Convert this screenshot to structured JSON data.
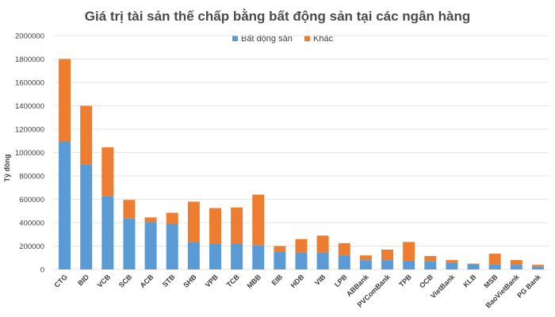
{
  "chart_data": {
    "type": "bar",
    "stacked": true,
    "title": "Giá trị tài sản thế chấp bằng bất động sản tại các ngân hàng",
    "ylabel": "Tỷ đồng",
    "xlabel": "",
    "ylim": [
      0,
      2000000
    ],
    "yticks": [
      0,
      200000,
      400000,
      600000,
      800000,
      1000000,
      1200000,
      1400000,
      1600000,
      1800000,
      2000000
    ],
    "grid": true,
    "legend_position": "top-center",
    "categories": [
      "CTG",
      "BID",
      "VCB",
      "SCB",
      "ACB",
      "STB",
      "SHB",
      "VPB",
      "TCB",
      "MBB",
      "EIB",
      "HDB",
      "VIB",
      "LPB",
      "ABBank",
      "PVComBank",
      "TPB",
      "OCB",
      "VietBank",
      "KLB",
      "MSB",
      "BaoVietBank",
      "PG Bank"
    ],
    "series": [
      {
        "name": "Bất động sản",
        "color": "#5b9bd5",
        "values": [
          1095000,
          900000,
          625000,
          435000,
          405000,
          390000,
          235000,
          220000,
          220000,
          205000,
          150000,
          145000,
          145000,
          120000,
          80000,
          80000,
          75000,
          70000,
          60000,
          45000,
          40000,
          40000,
          25000
        ]
      },
      {
        "name": "Khác",
        "color": "#ed7d31",
        "values": [
          705000,
          500000,
          420000,
          160000,
          40000,
          95000,
          345000,
          305000,
          310000,
          435000,
          50000,
          115000,
          145000,
          105000,
          40000,
          90000,
          160000,
          45000,
          20000,
          5000,
          95000,
          40000,
          15000
        ]
      }
    ]
  }
}
